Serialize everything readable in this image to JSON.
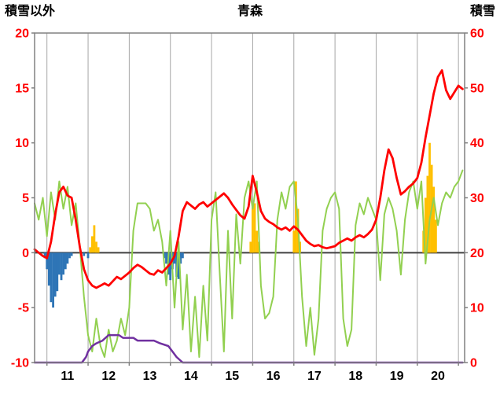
{
  "header": {
    "left_axis_title": "積雪以外",
    "title": "青森",
    "right_axis_title": "積雪"
  },
  "chart_data": {
    "type": "line",
    "title": "青森",
    "x_axis": {
      "ticks": [
        11,
        12,
        13,
        14,
        15,
        16,
        17,
        18,
        19,
        20
      ],
      "tick_label_offset": 0.5,
      "range": [
        10.7,
        21.15
      ],
      "gridlines_at": [
        11,
        12,
        13,
        14,
        15,
        16,
        17,
        18,
        19,
        20,
        21
      ]
    },
    "left_y_axis": {
      "label": "積雪以外",
      "ticks": [
        20,
        15,
        10,
        5,
        0,
        -5,
        -10
      ],
      "range": [
        -10,
        20
      ]
    },
    "right_y_axis": {
      "label": "積雪",
      "ticks": [
        60,
        50,
        40,
        30,
        20,
        10,
        0
      ],
      "range": [
        0,
        60
      ]
    },
    "grid": true,
    "legend": "none",
    "x_start": 10.7,
    "x_step": 0.1,
    "style": {
      "axis_number_color": "#FF0000",
      "x_label_color": "#000000",
      "grid_color": "#A6A6A6",
      "frame_color": "#808080",
      "zero_line_color": "#404040"
    },
    "series": [
      {
        "name": "blue-bars",
        "type": "bar",
        "axis": "left",
        "color": "#2E75B6",
        "bars": [
          {
            "x": 10.95,
            "v": -0.5
          },
          {
            "x": 11.0,
            "v": -1.5
          },
          {
            "x": 11.05,
            "v": -3
          },
          {
            "x": 11.1,
            "v": -4.5
          },
          {
            "x": 11.15,
            "v": -5
          },
          {
            "x": 11.2,
            "v": -4
          },
          {
            "x": 11.25,
            "v": -3.5
          },
          {
            "x": 11.3,
            "v": -2
          },
          {
            "x": 11.35,
            "v": -2.5
          },
          {
            "x": 11.4,
            "v": -2
          },
          {
            "x": 11.45,
            "v": -1.5
          },
          {
            "x": 11.5,
            "v": -1
          },
          {
            "x": 11.55,
            "v": -0.5
          },
          {
            "x": 11.6,
            "v": -0.3
          },
          {
            "x": 11.9,
            "v": -0.3
          },
          {
            "x": 12.0,
            "v": -0.5
          },
          {
            "x": 13.85,
            "v": -0.5
          },
          {
            "x": 13.9,
            "v": -1
          },
          {
            "x": 13.95,
            "v": -2
          },
          {
            "x": 14.0,
            "v": -2.5
          },
          {
            "x": 14.05,
            "v": -1.5
          },
          {
            "x": 14.1,
            "v": -1
          },
          {
            "x": 14.15,
            "v": -2.2
          },
          {
            "x": 14.2,
            "v": -2.4
          },
          {
            "x": 14.25,
            "v": -1
          },
          {
            "x": 14.3,
            "v": -0.5
          }
        ]
      },
      {
        "name": "orange-bars",
        "type": "bar",
        "axis": "left",
        "color": "#FFC000",
        "bars": [
          {
            "x": 12.05,
            "v": 0.5
          },
          {
            "x": 12.1,
            "v": 1.5
          },
          {
            "x": 12.15,
            "v": 2.5
          },
          {
            "x": 12.2,
            "v": 1
          },
          {
            "x": 12.25,
            "v": 0.5
          },
          {
            "x": 15.95,
            "v": 1
          },
          {
            "x": 16.0,
            "v": 4.3
          },
          {
            "x": 16.05,
            "v": 4.5
          },
          {
            "x": 16.1,
            "v": 2
          },
          {
            "x": 16.15,
            "v": 1
          },
          {
            "x": 17.0,
            "v": 2
          },
          {
            "x": 17.05,
            "v": 6.5
          },
          {
            "x": 17.1,
            "v": 4
          },
          {
            "x": 17.15,
            "v": 1
          },
          {
            "x": 20.15,
            "v": 2
          },
          {
            "x": 20.2,
            "v": 5
          },
          {
            "x": 20.25,
            "v": 7
          },
          {
            "x": 20.3,
            "v": 10
          },
          {
            "x": 20.35,
            "v": 8
          },
          {
            "x": 20.4,
            "v": 6
          },
          {
            "x": 20.45,
            "v": 3
          }
        ]
      },
      {
        "name": "green-line",
        "type": "line",
        "axis": "left",
        "color": "#92D050",
        "width": 2,
        "values": [
          4.5,
          3,
          5,
          1.5,
          5.5,
          3,
          6.5,
          4,
          6,
          2.5,
          4.5,
          0.5,
          -4,
          -7.5,
          -9,
          -6,
          -8.5,
          -9.5,
          -7,
          -9,
          -8,
          -6,
          -7.5,
          -5,
          2,
          4.5,
          4.5,
          4.5,
          4,
          2,
          3,
          1,
          -3,
          2,
          -5,
          1,
          -7,
          -2,
          -9,
          -4,
          -9.5,
          -3,
          -8,
          3,
          5.5,
          -2,
          -9,
          2,
          -6,
          3.5,
          -1,
          5,
          6.5,
          4,
          6.5,
          -3,
          -6,
          -5.5,
          -4,
          3,
          5.5,
          4,
          6,
          6.5,
          3,
          -4,
          -8.5,
          -5,
          -9.3,
          -6,
          2,
          4,
          5,
          5.5,
          4,
          -6,
          -8.5,
          -7,
          2.5,
          4.5,
          3.5,
          5,
          4,
          3,
          -2.5,
          3.5,
          5,
          4,
          2,
          -2,
          3,
          5.5,
          6.5,
          4,
          6.5,
          -1,
          3,
          5,
          2.5,
          4.5,
          5.5,
          5,
          6,
          6.5,
          7.5
        ]
      },
      {
        "name": "red-line",
        "type": "line",
        "axis": "left",
        "color": "#FF0000",
        "width": 2.8,
        "values": [
          0.3,
          0,
          -0.3,
          -0.5,
          1,
          3.5,
          5.5,
          6,
          5.2,
          5,
          3,
          0.5,
          -1.5,
          -2.5,
          -3,
          -3.2,
          -3,
          -2.8,
          -3,
          -2.6,
          -2.2,
          -2.4,
          -2.1,
          -1.8,
          -1.4,
          -1.1,
          -1.3,
          -1.6,
          -1.9,
          -2,
          -1.6,
          -1.8,
          -1.4,
          -1,
          -0.3,
          1.5,
          3.8,
          4.6,
          4.3,
          4,
          4.4,
          4.6,
          4.2,
          4.5,
          4.8,
          5.1,
          5.4,
          5,
          4.4,
          3.9,
          3.4,
          3.1,
          4.2,
          7,
          5.5,
          3.8,
          3.1,
          2.8,
          2.6,
          2.3,
          2.1,
          2.3,
          2,
          2.4,
          2.1,
          1.6,
          1.1,
          0.8,
          0.6,
          0.7,
          0.5,
          0.4,
          0.5,
          0.6,
          0.9,
          1.1,
          1.3,
          1.1,
          1.4,
          1.6,
          1.4,
          1.7,
          2.1,
          3,
          5,
          7.5,
          9.4,
          8.6,
          6.8,
          5.3,
          5.6,
          6,
          6.3,
          6.8,
          8.2,
          10.5,
          12.5,
          14.5,
          16,
          16.6,
          14.8,
          14,
          14.6,
          15.2,
          14.9
        ]
      },
      {
        "name": "purple-line",
        "type": "line",
        "axis": "right",
        "color": "#7030A0",
        "width": 2.5,
        "points": [
          [
            10.7,
            0
          ],
          [
            11.85,
            0
          ],
          [
            11.95,
            1
          ],
          [
            12.0,
            2
          ],
          [
            12.1,
            3
          ],
          [
            12.2,
            3.5
          ],
          [
            12.35,
            4
          ],
          [
            12.5,
            5
          ],
          [
            12.75,
            5
          ],
          [
            12.85,
            4.5
          ],
          [
            13.1,
            4.5
          ],
          [
            13.2,
            4
          ],
          [
            13.6,
            4
          ],
          [
            13.75,
            3.5
          ],
          [
            13.95,
            3
          ],
          [
            14.05,
            2
          ],
          [
            14.15,
            1
          ],
          [
            14.3,
            0
          ],
          [
            21.1,
            0
          ]
        ]
      }
    ]
  }
}
